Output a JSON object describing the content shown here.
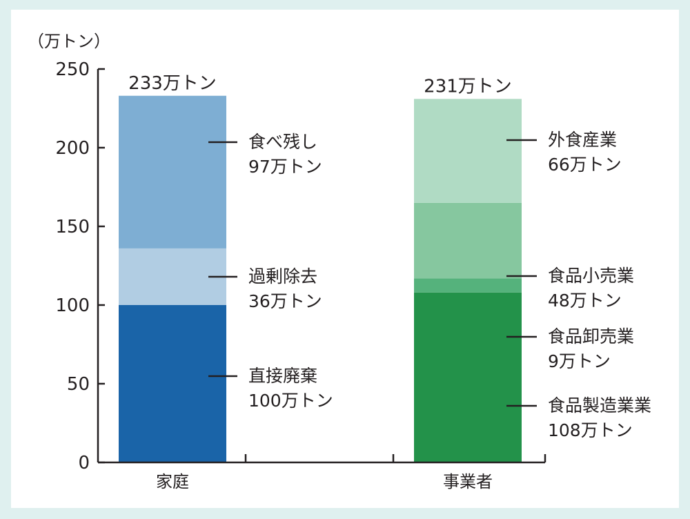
{
  "chart_data": {
    "type": "bar",
    "stacked": true,
    "ylabel": "（万トン）",
    "ylim": [
      0,
      250
    ],
    "yticks": [
      0,
      50,
      100,
      150,
      200,
      250
    ],
    "grid": false,
    "categories": [
      {
        "name": "家庭",
        "total_label": "233万トン",
        "segments": [
          {
            "name": "直接廃棄",
            "value": 100,
            "value_label": "100万トン",
            "color": "#1a64a8"
          },
          {
            "name": "過剰除去",
            "value": 36,
            "value_label": "36万トン",
            "color": "#b1cde3"
          },
          {
            "name": "食べ残し",
            "value": 97,
            "value_label": "97万トン",
            "color": "#7eaed3"
          }
        ]
      },
      {
        "name": "事業者",
        "total_label": "231万トン",
        "segments": [
          {
            "name": "食品製造業業",
            "value": 108,
            "value_label": "108万トン",
            "color": "#23924a"
          },
          {
            "name": "食品卸売業",
            "value": 9,
            "value_label": "9万トン",
            "color": "#55b27c"
          },
          {
            "name": "食品小売業",
            "value": 48,
            "value_label": "48万トン",
            "color": "#86c79f"
          },
          {
            "name": "外食産業",
            "value": 66,
            "value_label": "66万トン",
            "color": "#b0dbc4"
          }
        ]
      }
    ]
  }
}
